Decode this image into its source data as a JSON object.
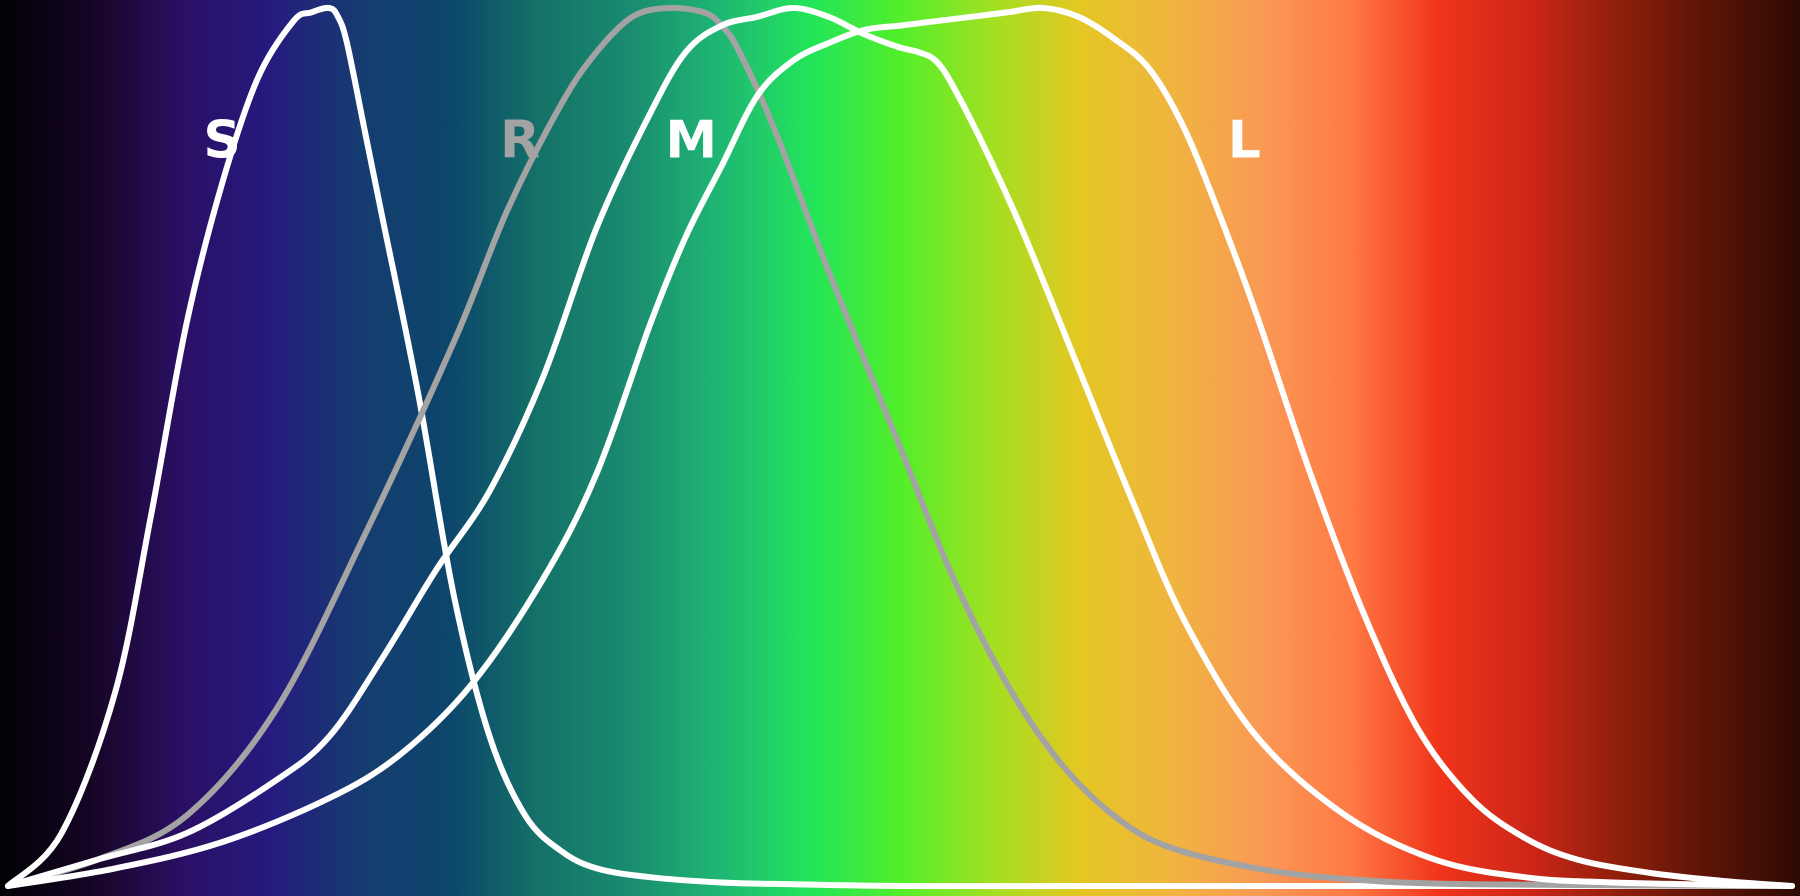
{
  "chart_data": {
    "type": "line",
    "title": "",
    "xlabel": "",
    "ylabel": "",
    "ylim": [
      0,
      1
    ],
    "grid": false,
    "background": "visible-spectrum-gradient",
    "spectrum_colors": [
      "#020106",
      "#150524",
      "#2a0f63",
      "#261a7e",
      "#153c70",
      "#0c466b",
      "#147268",
      "#1a8b70",
      "#1fb774",
      "#22e45a",
      "#52ee2a",
      "#a0e022",
      "#e4c722",
      "#f0b53f",
      "#f99a55",
      "#ff7a45",
      "#f0341a",
      "#cc2618",
      "#8e1f0a",
      "#5a1406",
      "#2d0a04"
    ],
    "series": [
      {
        "name": "S",
        "color": "#ffffff",
        "x": [
          0.0,
          0.03,
          0.06,
          0.08,
          0.1,
          0.12,
          0.14,
          0.16,
          0.17,
          0.18,
          0.185,
          0.19,
          0.2,
          0.21,
          0.23,
          0.25,
          0.27,
          0.29,
          0.31,
          0.33,
          0.36,
          0.4,
          0.44,
          0.5,
          0.6,
          0.7,
          0.8,
          0.9,
          1.0
        ],
        "y": [
          0.0,
          0.06,
          0.22,
          0.42,
          0.64,
          0.8,
          0.92,
          0.985,
          0.995,
          1.0,
          0.99,
          0.96,
          0.86,
          0.76,
          0.56,
          0.33,
          0.17,
          0.08,
          0.04,
          0.02,
          0.01,
          0.004,
          0.002,
          0.0,
          0.0,
          0.0,
          0.0,
          0.0,
          0.0
        ]
      },
      {
        "name": "R",
        "color": "#a3a3a3",
        "x": [
          0.0,
          0.05,
          0.1,
          0.15,
          0.2,
          0.25,
          0.28,
          0.31,
          0.33,
          0.35,
          0.37,
          0.39,
          0.4,
          0.41,
          0.43,
          0.46,
          0.5,
          0.53,
          0.56,
          0.59,
          0.62,
          0.65,
          0.7,
          0.75,
          0.82,
          1.0
        ],
        "y": [
          0.0,
          0.03,
          0.08,
          0.2,
          0.4,
          0.62,
          0.77,
          0.89,
          0.95,
          0.99,
          1.0,
          0.995,
          0.98,
          0.95,
          0.86,
          0.7,
          0.5,
          0.35,
          0.23,
          0.14,
          0.08,
          0.045,
          0.02,
          0.008,
          0.002,
          0.0
        ]
      },
      {
        "name": "M",
        "color": "#ffffff",
        "x": [
          0.0,
          0.05,
          0.1,
          0.15,
          0.18,
          0.21,
          0.24,
          0.27,
          0.3,
          0.33,
          0.36,
          0.38,
          0.4,
          0.42,
          0.44,
          0.46,
          0.48,
          0.5,
          0.51,
          0.52,
          0.53,
          0.55,
          0.57,
          0.6,
          0.63,
          0.66,
          0.7,
          0.75,
          0.8,
          0.85,
          0.9,
          1.0
        ],
        "y": [
          0.0,
          0.03,
          0.06,
          0.12,
          0.17,
          0.26,
          0.36,
          0.45,
          0.58,
          0.75,
          0.88,
          0.95,
          0.98,
          0.99,
          1.0,
          0.99,
          0.97,
          0.955,
          0.95,
          0.94,
          0.91,
          0.83,
          0.74,
          0.59,
          0.44,
          0.3,
          0.17,
          0.08,
          0.03,
          0.01,
          0.004,
          0.0
        ]
      },
      {
        "name": "L",
        "color": "#ffffff",
        "x": [
          0.0,
          0.06,
          0.12,
          0.18,
          0.22,
          0.26,
          0.3,
          0.33,
          0.36,
          0.38,
          0.4,
          0.42,
          0.44,
          0.46,
          0.48,
          0.5,
          0.52,
          0.54,
          0.56,
          0.58,
          0.6,
          0.62,
          0.64,
          0.66,
          0.68,
          0.7,
          0.73,
          0.76,
          0.79,
          0.82,
          0.85,
          0.88,
          0.92,
          0.96,
          1.0
        ],
        "y": [
          0.0,
          0.02,
          0.05,
          0.1,
          0.15,
          0.23,
          0.35,
          0.47,
          0.64,
          0.74,
          0.82,
          0.9,
          0.94,
          0.96,
          0.975,
          0.98,
          0.985,
          0.99,
          0.995,
          1.0,
          0.99,
          0.965,
          0.93,
          0.86,
          0.76,
          0.65,
          0.47,
          0.31,
          0.18,
          0.1,
          0.055,
          0.03,
          0.015,
          0.006,
          0.0
        ]
      }
    ],
    "labels": [
      {
        "text": "S",
        "x": 0.12,
        "y": 0.83,
        "color": "#ffffff"
      },
      {
        "text": "R",
        "x": 0.287,
        "y": 0.83,
        "color": "#a3a3a3"
      },
      {
        "text": "M",
        "x": 0.383,
        "y": 0.83,
        "color": "#ffffff"
      },
      {
        "text": "L",
        "x": 0.693,
        "y": 0.83,
        "color": "#ffffff"
      }
    ]
  }
}
